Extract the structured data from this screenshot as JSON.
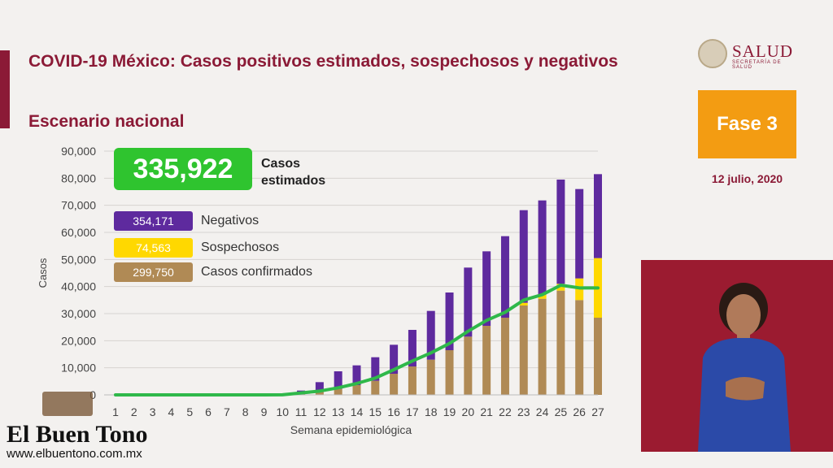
{
  "header": {
    "title": "COVID-19 México: Casos positivos estimados, sospechosos y negativos",
    "subtitle": "Escenario nacional"
  },
  "logo": {
    "name": "SALUD",
    "sub": "SECRETARÍA DE SALUD"
  },
  "phase": {
    "label": "Fase 3",
    "color": "#f39c12"
  },
  "date": "12 julio, 2020",
  "summary": {
    "total_value": "335,922",
    "total_label": "Casos estimados",
    "legend": [
      {
        "value": "354,171",
        "label": "Negativos",
        "color": "#5e2a9e"
      },
      {
        "value": "74,563",
        "label": "Sospechosos",
        "color": "#ffd800"
      },
      {
        "value": "299,750",
        "label": "Casos confirmados",
        "color": "#b08a55"
      }
    ]
  },
  "watermark": {
    "name": "El Buen Tono",
    "url": "www.elbuentono.com.mx"
  },
  "chart_data": {
    "type": "bar",
    "stacked": true,
    "xlabel": "Semana epidemiológica",
    "ylabel": "Casos",
    "ylim": [
      0,
      90000
    ],
    "yticks": [
      "0",
      "10,000",
      "20,000",
      "30,000",
      "40,000",
      "50,000",
      "60,000",
      "70,000",
      "80,000",
      "90,000"
    ],
    "grid": true,
    "categories": [
      "1",
      "2",
      "3",
      "4",
      "5",
      "6",
      "7",
      "8",
      "9",
      "10",
      "11",
      "12",
      "13",
      "14",
      "15",
      "16",
      "17",
      "18",
      "19",
      "20",
      "21",
      "22",
      "23",
      "24",
      "25",
      "26",
      "27"
    ],
    "series": [
      {
        "name": "Casos confirmados",
        "color": "#b08a55",
        "values": [
          0,
          0,
          0,
          0,
          0,
          0,
          0,
          0,
          0,
          50,
          600,
          1200,
          2200,
          3600,
          5200,
          7800,
          10500,
          13000,
          16500,
          21500,
          25500,
          28500,
          33000,
          35500,
          38500,
          35000,
          28500
        ]
      },
      {
        "name": "Sospechosos",
        "color": "#ffd800",
        "values": [
          0,
          0,
          0,
          0,
          0,
          0,
          0,
          0,
          0,
          0,
          0,
          0,
          0,
          0,
          0,
          0,
          0,
          0,
          0,
          0,
          0,
          0,
          1000,
          1500,
          2500,
          8000,
          22000
        ]
      },
      {
        "name": "Negativos",
        "color": "#5e2a9e",
        "values": [
          0,
          0,
          0,
          0,
          0,
          0,
          0,
          0,
          0,
          50,
          1000,
          3500,
          6500,
          7300,
          8700,
          10700,
          13500,
          18000,
          21300,
          25500,
          27500,
          30100,
          34200,
          34800,
          38500,
          33000,
          31000
        ]
      },
      {
        "name": "Casos estimados",
        "type": "line",
        "color": "#2fb84a",
        "values": [
          0,
          0,
          0,
          0,
          0,
          0,
          0,
          0,
          0,
          50,
          700,
          1400,
          2600,
          4200,
          6200,
          9300,
          12500,
          15500,
          19000,
          23500,
          27500,
          30500,
          35000,
          37000,
          40500,
          39500,
          39500
        ]
      }
    ]
  }
}
